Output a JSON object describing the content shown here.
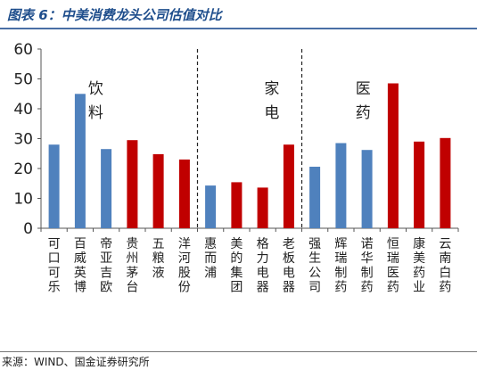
{
  "figure": {
    "title": "图表 6：中美消费龙头公司估值对比",
    "source": "来源：WIND、国金证券研究所"
  },
  "colors": {
    "us": "#4f81bd",
    "cn": "#c00000"
  },
  "chart_data": {
    "type": "bar",
    "categories": [
      "可口可乐",
      "百威英博",
      "帝亚吉欧",
      "贵州茅台",
      "五粮液",
      "洋河股份",
      "惠而浦",
      "美的集团",
      "格力电器",
      "老板电器",
      "强生公司",
      "辉瑞制药",
      "诺华制药",
      "恒瑞医药",
      "康美药业",
      "云南白药"
    ],
    "values": [
      28,
      45,
      26.5,
      29.5,
      24.8,
      23,
      14.3,
      15.4,
      13.6,
      28,
      20.6,
      28.5,
      26.2,
      48.5,
      29,
      30.2
    ],
    "market": [
      "us",
      "us",
      "us",
      "cn",
      "cn",
      "cn",
      "us",
      "cn",
      "cn",
      "cn",
      "us",
      "us",
      "us",
      "cn",
      "cn",
      "cn"
    ],
    "ylim": [
      0,
      60
    ],
    "yticks": [
      0,
      10,
      20,
      30,
      40,
      50,
      60
    ],
    "grid": false,
    "group_labels": [
      {
        "label": "饮料",
        "after_index": null
      },
      {
        "label": "家电",
        "after_index": 5
      },
      {
        "label": "医药",
        "after_index": 9
      }
    ]
  }
}
